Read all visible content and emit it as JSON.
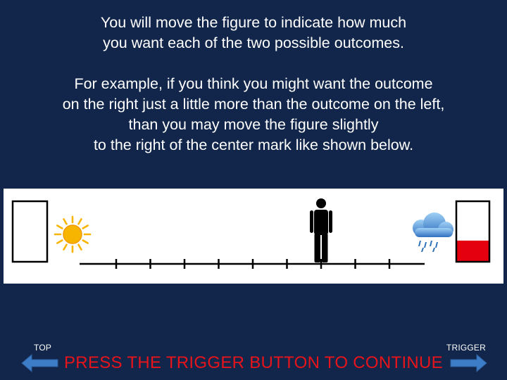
{
  "instructions": {
    "paragraph1": [
      "You will move the figure to indicate how much",
      "you want each of the two possible outcomes."
    ],
    "paragraph2": [
      "For example, if you think you might want the outcome",
      "on the right just a little more than the outcome on the left,",
      "than you may move the figure slightly",
      "to the right of the center mark like shown below."
    ]
  },
  "scale": {
    "left_outcome_icon": "sun-icon",
    "right_outcome_icon": "rain-cloud-icon",
    "tick_count": 9,
    "figure_position_tick": 6,
    "left_meter_fill": 0.0,
    "right_meter_fill": 0.35,
    "colors": {
      "meter_fill": "#e50010",
      "sun": "#f7b500",
      "cloud": "#4a90d9",
      "figure": "#000000"
    }
  },
  "navigation": {
    "left_label": "TOP",
    "right_label": "TRIGGER",
    "continue_text": "PRESS THE TRIGGER BUTTON TO CONTINUE",
    "continue_color": "#e8141b",
    "arrow_color": "#3d7dc8"
  }
}
